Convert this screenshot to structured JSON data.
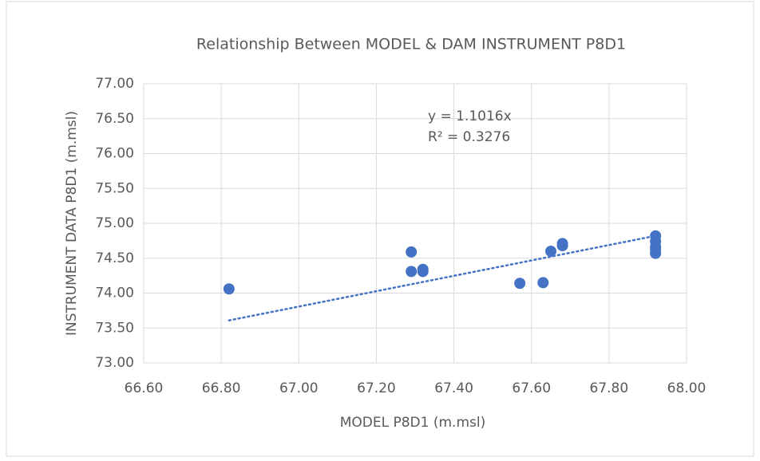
{
  "chart_data": {
    "type": "scatter",
    "title": "Relationship Between MODEL & DAM INSTRUMENT P8D1",
    "x_label": "MODEL P8D1 (m.msl)",
    "y_label": "INSTRUMENT DATA P8D1 (m.msl)",
    "series": [
      {
        "name": "P8D1",
        "color": "#4472c4",
        "x": [
          66.82,
          67.29,
          67.29,
          67.32,
          67.32,
          67.57,
          67.63,
          67.65,
          67.68,
          67.68,
          67.92,
          67.92,
          67.92,
          67.92,
          67.92
        ],
        "values": [
          74.06,
          74.59,
          74.31,
          74.34,
          74.31,
          74.14,
          74.15,
          74.6,
          74.68,
          74.71,
          74.82,
          74.74,
          74.66,
          74.57,
          74.62
        ]
      }
    ],
    "trendline": {
      "slope": 1.1016,
      "equation": "y = 1.1016x",
      "r_squared": "R² = 0.3276",
      "color": "#4472c4"
    },
    "xlim": [
      66.6,
      68.0
    ],
    "xticks": [
      {
        "value": 66.6,
        "label": "66.60"
      },
      {
        "value": 66.8,
        "label": "66.80"
      },
      {
        "value": 67.0,
        "label": "67.00"
      },
      {
        "value": 67.2,
        "label": "67.20"
      },
      {
        "value": 67.4,
        "label": "67.40"
      },
      {
        "value": 67.6,
        "label": "67.60"
      },
      {
        "value": 67.8,
        "label": "67.80"
      },
      {
        "value": 68.0,
        "label": "68.00"
      }
    ],
    "ylim": [
      73.0,
      77.0
    ],
    "yticks": [
      {
        "value": 73.0,
        "label": "73.00"
      },
      {
        "value": 73.5,
        "label": "73.50"
      },
      {
        "value": 74.0,
        "label": "74.00"
      },
      {
        "value": 74.5,
        "label": "74.50"
      },
      {
        "value": 75.0,
        "label": "75.00"
      },
      {
        "value": 75.5,
        "label": "75.50"
      },
      {
        "value": 76.0,
        "label": "76.00"
      },
      {
        "value": 76.5,
        "label": "76.50"
      },
      {
        "value": 77.0,
        "label": "77.00"
      }
    ],
    "grid": true
  }
}
